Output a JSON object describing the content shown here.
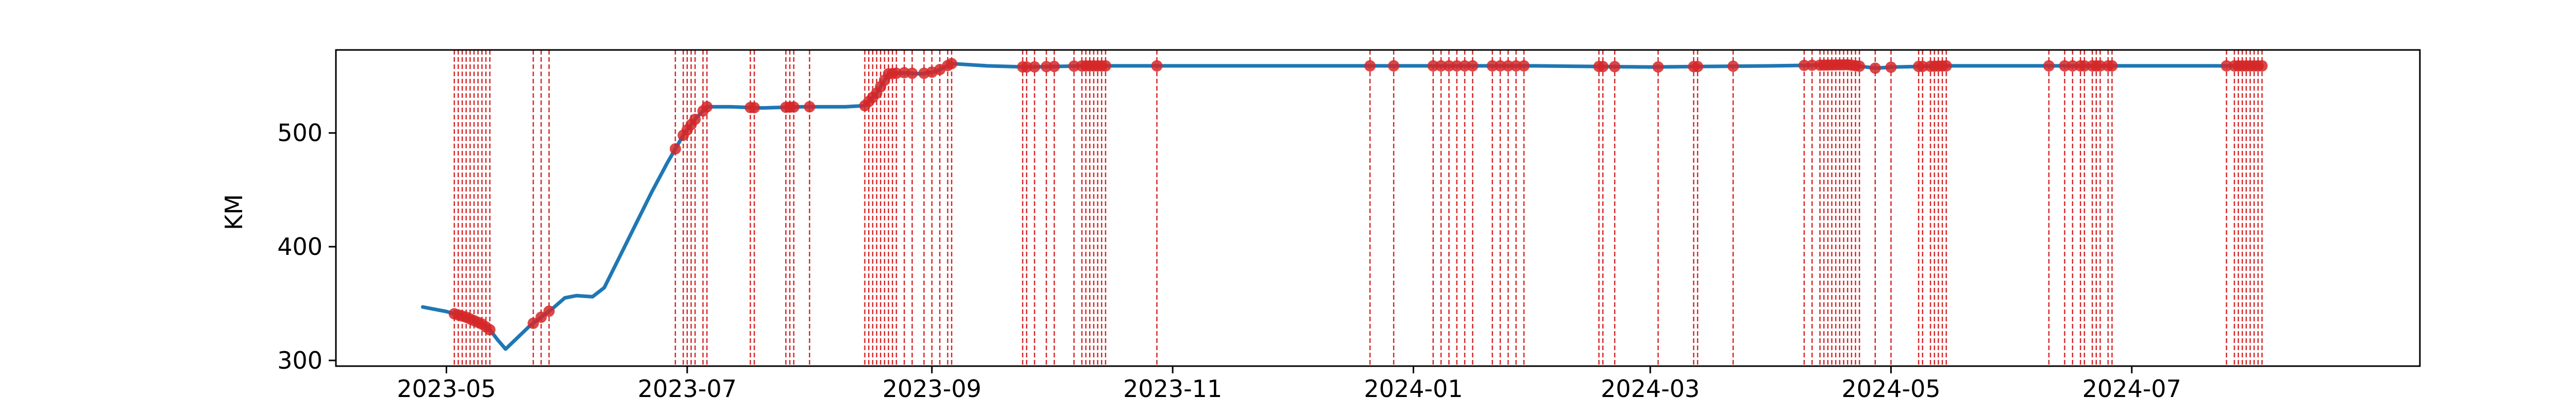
{
  "chart_data": {
    "type": "line",
    "title": "",
    "xlabel": "",
    "ylabel": "KM",
    "xlim": [
      "2023-04-03",
      "2024-09-12"
    ],
    "ylim": [
      295,
      573
    ],
    "grid": false,
    "legend": "none",
    "x_ticks": [
      {
        "date": "2023-05-01",
        "label": "2023-05"
      },
      {
        "date": "2023-07-01",
        "label": "2023-07"
      },
      {
        "date": "2023-09-01",
        "label": "2023-09"
      },
      {
        "date": "2023-11-01",
        "label": "2023-11"
      },
      {
        "date": "2024-01-01",
        "label": "2024-01"
      },
      {
        "date": "2024-03-01",
        "label": "2024-03"
      },
      {
        "date": "2024-05-01",
        "label": "2024-05"
      },
      {
        "date": "2024-07-01",
        "label": "2024-07"
      }
    ],
    "y_ticks": [
      300,
      400,
      500
    ],
    "colors": {
      "line": "#1f77b4",
      "events": "#d62728",
      "markers": "#d62728"
    },
    "series": [
      {
        "points": [
          [
            "2023-04-25",
            347
          ],
          [
            "2023-05-01",
            343
          ],
          [
            "2023-05-06",
            338
          ],
          [
            "2023-05-10",
            332
          ],
          [
            "2023-05-12",
            327
          ],
          [
            "2023-05-14",
            318
          ],
          [
            "2023-05-16",
            310
          ],
          [
            "2023-05-19",
            320
          ],
          [
            "2023-05-22",
            330
          ],
          [
            "2023-05-25",
            338
          ],
          [
            "2023-05-28",
            346
          ],
          [
            "2023-05-31",
            355
          ],
          [
            "2023-06-03",
            357
          ],
          [
            "2023-06-07",
            356
          ],
          [
            "2023-06-10",
            364
          ],
          [
            "2023-06-14",
            392
          ],
          [
            "2023-06-18",
            420
          ],
          [
            "2023-06-22",
            448
          ],
          [
            "2023-06-26",
            474
          ],
          [
            "2023-06-30",
            498
          ],
          [
            "2023-07-03",
            512
          ],
          [
            "2023-07-06",
            523
          ],
          [
            "2023-07-12",
            523
          ],
          [
            "2023-07-20",
            522
          ],
          [
            "2023-07-30",
            523
          ],
          [
            "2023-08-10",
            523
          ],
          [
            "2023-08-15",
            524
          ],
          [
            "2023-08-18",
            535
          ],
          [
            "2023-08-21",
            552
          ],
          [
            "2023-08-25",
            553
          ],
          [
            "2023-08-29",
            552
          ],
          [
            "2023-09-02",
            554
          ],
          [
            "2023-09-06",
            561
          ],
          [
            "2023-09-15",
            559
          ],
          [
            "2023-09-25",
            558
          ],
          [
            "2023-10-10",
            559
          ],
          [
            "2023-11-01",
            559
          ],
          [
            "2023-12-01",
            559
          ],
          [
            "2024-01-01",
            559
          ],
          [
            "2024-02-01",
            559
          ],
          [
            "2024-03-01",
            558
          ],
          [
            "2024-04-01",
            559
          ],
          [
            "2024-04-20",
            560
          ],
          [
            "2024-04-27",
            557
          ],
          [
            "2024-05-02",
            558
          ],
          [
            "2024-05-15",
            559
          ],
          [
            "2024-06-15",
            559
          ],
          [
            "2024-07-15",
            559
          ],
          [
            "2024-08-01",
            559
          ],
          [
            "2024-08-03",
            559
          ]
        ]
      }
    ],
    "event_dates": [
      "2023-05-03",
      "2023-05-04",
      "2023-05-05",
      "2023-05-06",
      "2023-05-07",
      "2023-05-08",
      "2023-05-09",
      "2023-05-10",
      "2023-05-11",
      "2023-05-12",
      "2023-05-23",
      "2023-05-25",
      "2023-05-27",
      "2023-06-28",
      "2023-06-30",
      "2023-07-01",
      "2023-07-02",
      "2023-07-03",
      "2023-07-05",
      "2023-07-06",
      "2023-07-17",
      "2023-07-18",
      "2023-07-26",
      "2023-07-27",
      "2023-07-28",
      "2023-08-01",
      "2023-08-15",
      "2023-08-16",
      "2023-08-17",
      "2023-08-18",
      "2023-08-19",
      "2023-08-20",
      "2023-08-21",
      "2023-08-22",
      "2023-08-23",
      "2023-08-25",
      "2023-08-27",
      "2023-08-30",
      "2023-09-01",
      "2023-09-03",
      "2023-09-05",
      "2023-09-06",
      "2023-09-24",
      "2023-09-25",
      "2023-09-27",
      "2023-09-30",
      "2023-10-02",
      "2023-10-07",
      "2023-10-09",
      "2023-10-10",
      "2023-10-11",
      "2023-10-12",
      "2023-10-13",
      "2023-10-14",
      "2023-10-15",
      "2023-10-28",
      "2023-12-21",
      "2023-12-27",
      "2024-01-06",
      "2024-01-08",
      "2024-01-10",
      "2024-01-12",
      "2024-01-14",
      "2024-01-16",
      "2024-01-21",
      "2024-01-23",
      "2024-01-25",
      "2024-01-27",
      "2024-01-29",
      "2024-02-17",
      "2024-02-18",
      "2024-02-21",
      "2024-03-03",
      "2024-03-12",
      "2024-03-13",
      "2024-03-22",
      "2024-04-09",
      "2024-04-11",
      "2024-04-13",
      "2024-04-14",
      "2024-04-15",
      "2024-04-16",
      "2024-04-17",
      "2024-04-18",
      "2024-04-19",
      "2024-04-20",
      "2024-04-21",
      "2024-04-22",
      "2024-04-23",
      "2024-04-27",
      "2024-05-01",
      "2024-05-08",
      "2024-05-09",
      "2024-05-11",
      "2024-05-12",
      "2024-05-13",
      "2024-05-14",
      "2024-05-15",
      "2024-06-10",
      "2024-06-14",
      "2024-06-16",
      "2024-06-18",
      "2024-06-19",
      "2024-06-21",
      "2024-06-22",
      "2024-06-23",
      "2024-06-25",
      "2024-06-26",
      "2024-07-25",
      "2024-07-27",
      "2024-07-28",
      "2024-07-29",
      "2024-07-30",
      "2024-07-31",
      "2024-08-01",
      "2024-08-02",
      "2024-08-03"
    ]
  }
}
